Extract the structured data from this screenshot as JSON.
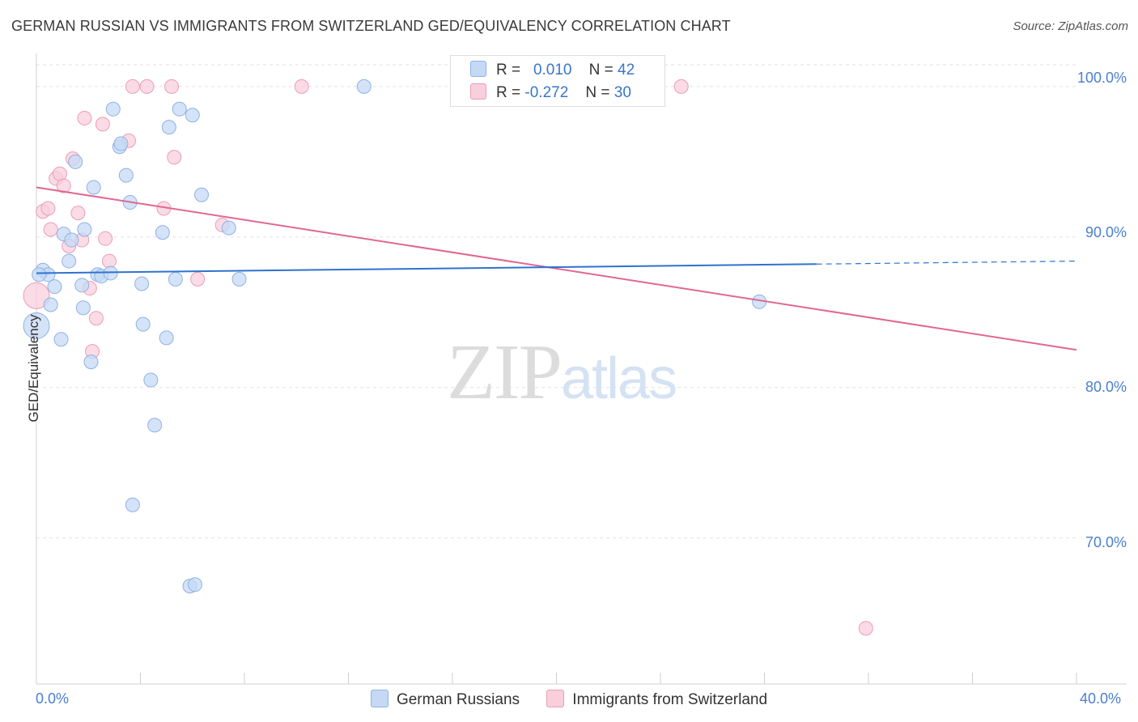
{
  "title": "GERMAN RUSSIAN VS IMMIGRANTS FROM SWITZERLAND GED/EQUIVALENCY CORRELATION CHART",
  "source": "Source: ZipAtlas.com",
  "watermark": {
    "part1": "ZIP",
    "part2": "atlas"
  },
  "legend": {
    "row1": {
      "r_label": "R =",
      "r_value": "0.010",
      "n_label": "N =",
      "n_value": "42"
    },
    "row2": {
      "r_label": "R =",
      "r_value": "-0.272",
      "n_label": "N =",
      "n_value": "30"
    }
  },
  "colors": {
    "blue_fill": "#c5d9f5",
    "blue_stroke": "#8fb2e3",
    "blue_line": "#2f72cf",
    "pink_fill": "#f9cfdc",
    "pink_stroke": "#ec9db6",
    "pink_line": "#e06793"
  },
  "chart_data": {
    "type": "scatter",
    "title": "GERMAN RUSSIAN VS IMMIGRANTS FROM SWITZERLAND GED/EQUIVALENCY CORRELATION CHART",
    "xlabel": "",
    "ylabel": "GED/Equivalency",
    "xlim": [
      0,
      40
    ],
    "ylim": [
      60.3,
      102.2
    ],
    "x_tick_labels": [
      "0.0%",
      "40.0%"
    ],
    "y_ticks": [
      {
        "value": 100,
        "label": "100.0%"
      },
      {
        "value": 90,
        "label": "90.0%"
      },
      {
        "value": 80,
        "label": "80.0%"
      },
      {
        "value": 70,
        "label": "70.0%"
      }
    ],
    "grid": true,
    "legend_position": "top-center",
    "series": [
      {
        "name": "German Russians",
        "color": "#c5d9f5",
        "points": [
          [
            0.0,
            84.1
          ],
          [
            0.25,
            87.8
          ],
          [
            0.45,
            87.5
          ],
          [
            0.55,
            85.5
          ],
          [
            0.7,
            86.7
          ],
          [
            0.95,
            83.2
          ],
          [
            1.05,
            90.2
          ],
          [
            1.25,
            88.4
          ],
          [
            1.35,
            89.8
          ],
          [
            1.5,
            95.0
          ],
          [
            1.75,
            86.8
          ],
          [
            1.8,
            85.3
          ],
          [
            1.85,
            90.5
          ],
          [
            2.1,
            81.7
          ],
          [
            2.2,
            93.3
          ],
          [
            2.35,
            87.5
          ],
          [
            2.5,
            87.4
          ],
          [
            2.85,
            87.6
          ],
          [
            2.95,
            98.5
          ],
          [
            3.2,
            96.0
          ],
          [
            3.25,
            96.2
          ],
          [
            3.45,
            94.1
          ],
          [
            3.6,
            92.3
          ],
          [
            3.7,
            72.2
          ],
          [
            4.05,
            86.9
          ],
          [
            4.1,
            84.2
          ],
          [
            4.4,
            80.5
          ],
          [
            4.55,
            77.5
          ],
          [
            4.85,
            90.3
          ],
          [
            5.0,
            83.3
          ],
          [
            5.1,
            97.3
          ],
          [
            5.35,
            87.2
          ],
          [
            5.5,
            98.5
          ],
          [
            5.9,
            66.8
          ],
          [
            6.0,
            98.1
          ],
          [
            6.1,
            66.9
          ],
          [
            6.35,
            92.8
          ],
          [
            7.4,
            90.6
          ],
          [
            7.8,
            87.2
          ],
          [
            12.6,
            100.0
          ],
          [
            27.8,
            85.7
          ],
          [
            0.1,
            87.5
          ]
        ],
        "trend": {
          "x": [
            0,
            30
          ],
          "y": [
            87.6,
            88.2
          ],
          "dashed_to": [
            40,
            88.4
          ]
        }
      },
      {
        "name": "Immigrants from Switzerland",
        "color": "#f9cfdc",
        "points": [
          [
            0.0,
            86.1
          ],
          [
            0.25,
            91.7
          ],
          [
            0.45,
            91.9
          ],
          [
            0.55,
            90.5
          ],
          [
            0.75,
            93.9
          ],
          [
            0.9,
            94.2
          ],
          [
            1.05,
            93.4
          ],
          [
            1.25,
            89.4
          ],
          [
            1.4,
            95.2
          ],
          [
            1.6,
            91.6
          ],
          [
            1.75,
            89.8
          ],
          [
            1.85,
            97.9
          ],
          [
            2.05,
            86.6
          ],
          [
            2.15,
            82.4
          ],
          [
            2.3,
            84.6
          ],
          [
            2.55,
            97.5
          ],
          [
            2.65,
            89.9
          ],
          [
            2.8,
            88.4
          ],
          [
            3.55,
            96.4
          ],
          [
            3.7,
            100.0
          ],
          [
            4.25,
            100.0
          ],
          [
            4.9,
            91.9
          ],
          [
            5.2,
            100.0
          ],
          [
            5.3,
            95.3
          ],
          [
            6.2,
            87.2
          ],
          [
            7.15,
            90.8
          ],
          [
            10.2,
            100.0
          ],
          [
            18.2,
            100.0
          ],
          [
            24.8,
            100.0
          ],
          [
            31.9,
            64.0
          ]
        ],
        "trend": {
          "x": [
            0,
            40
          ],
          "y": [
            93.3,
            82.5
          ]
        }
      }
    ]
  },
  "bottom_legend": {
    "item1": "German Russians",
    "item2": "Immigrants from Switzerland"
  }
}
